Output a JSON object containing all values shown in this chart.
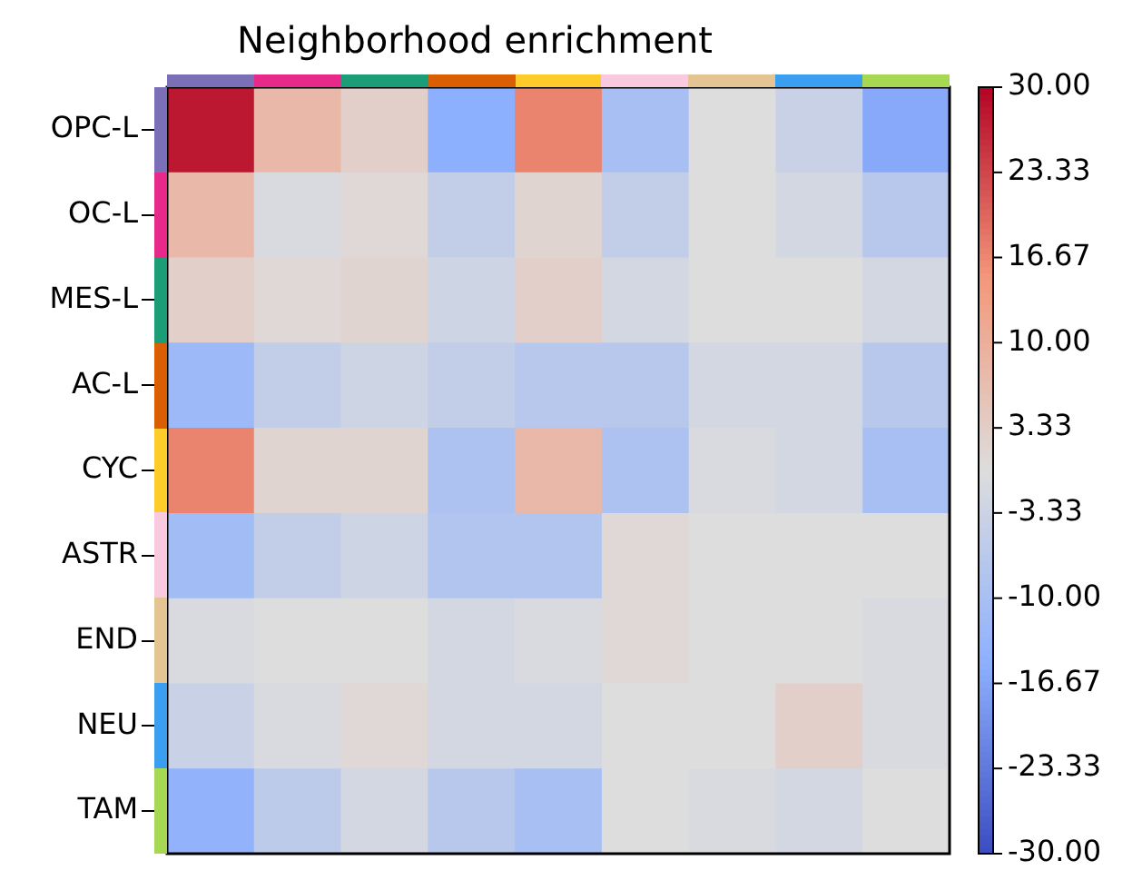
{
  "chart_data": {
    "type": "heatmap",
    "title": "Neighborhood enrichment",
    "categories": [
      null,
      null,
      null,
      null,
      null,
      null,
      null,
      null,
      null
    ],
    "y_categories": [
      "OPC-L",
      "OC-L",
      "MES-L",
      "AC-L",
      "CYC",
      "ASTR",
      "END",
      "NEU",
      "TAM"
    ],
    "cells": [
      [
        28,
        8,
        3,
        -15,
        17,
        -10,
        0,
        -4,
        -16
      ],
      [
        8,
        -1,
        1,
        -5,
        2,
        -5,
        0,
        -2,
        -7
      ],
      [
        3,
        1,
        2,
        -3,
        3,
        -2,
        0,
        0,
        -2
      ],
      [
        -12,
        -5,
        -3,
        -5,
        -7,
        -7,
        -2,
        -2,
        -7
      ],
      [
        17,
        2,
        2,
        -9,
        8,
        -9,
        -1,
        -2,
        -10
      ],
      [
        -11,
        -5,
        -3,
        -8,
        -8,
        1,
        0,
        0,
        0
      ],
      [
        -1,
        0,
        0,
        -2,
        -1,
        1,
        0,
        0,
        -1
      ],
      [
        -4,
        -1,
        1,
        -2,
        -2,
        0,
        0,
        3,
        -1
      ],
      [
        -14,
        -6,
        -2,
        -7,
        -10,
        0,
        -1,
        -2,
        0
      ]
    ],
    "clim": [
      -30,
      30
    ],
    "cticks": [
      {
        "value": 30,
        "label": "30.00"
      },
      {
        "value": 23.33,
        "label": "23.33"
      },
      {
        "value": 16.67,
        "label": "16.67"
      },
      {
        "value": 10,
        "label": "10.00"
      },
      {
        "value": 3.33,
        "label": "3.33"
      },
      {
        "value": -3.33,
        "label": "-3.33"
      },
      {
        "value": -10,
        "label": "-10.00"
      },
      {
        "value": -16.67,
        "label": "-16.67"
      },
      {
        "value": -23.33,
        "label": "-23.33"
      },
      {
        "value": -30,
        "label": "-30.00"
      }
    ]
  }
}
